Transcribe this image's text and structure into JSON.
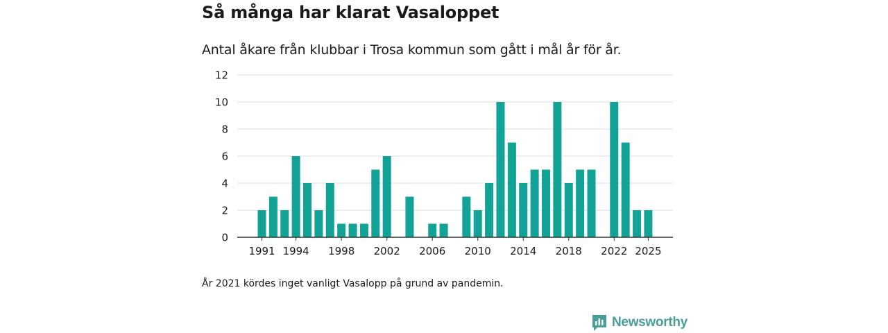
{
  "header": {
    "title": "Så många har klarat Vasaloppet",
    "subtitle": "Antal åkare från klubbar i Trosa kommun som gått i mål år för år."
  },
  "footnote": "År 2021 kördes inget vanligt Vasalopp på grund av pandemin.",
  "brand": {
    "name": "Newsworthy"
  },
  "colors": {
    "bar": "#12a396",
    "grid": "#dddddd",
    "axis": "#333333",
    "text": "#1a1a1a",
    "brand": "#4a9e9a"
  },
  "chart_data": {
    "type": "bar",
    "title": "Så många har klarat Vasaloppet",
    "xlabel": "",
    "ylabel": "",
    "ylim": [
      0,
      12
    ],
    "yticks": [
      0,
      2,
      4,
      6,
      8,
      10,
      12
    ],
    "xtick_labels": [
      "1991",
      "1994",
      "1998",
      "2002",
      "2006",
      "2010",
      "2014",
      "2018",
      "2022",
      "2025"
    ],
    "categories": [
      1991,
      1992,
      1993,
      1994,
      1995,
      1996,
      1997,
      1998,
      1999,
      2000,
      2001,
      2002,
      2003,
      2004,
      2005,
      2006,
      2007,
      2008,
      2009,
      2010,
      2011,
      2012,
      2013,
      2014,
      2015,
      2016,
      2017,
      2018,
      2019,
      2020,
      2021,
      2022,
      2023,
      2024,
      2025
    ],
    "values": [
      2,
      3,
      2,
      6,
      4,
      2,
      4,
      1,
      1,
      1,
      5,
      6,
      0,
      3,
      0,
      1,
      1,
      0,
      3,
      2,
      4,
      10,
      7,
      4,
      5,
      5,
      10,
      4,
      5,
      5,
      0,
      10,
      7,
      2,
      2
    ]
  }
}
